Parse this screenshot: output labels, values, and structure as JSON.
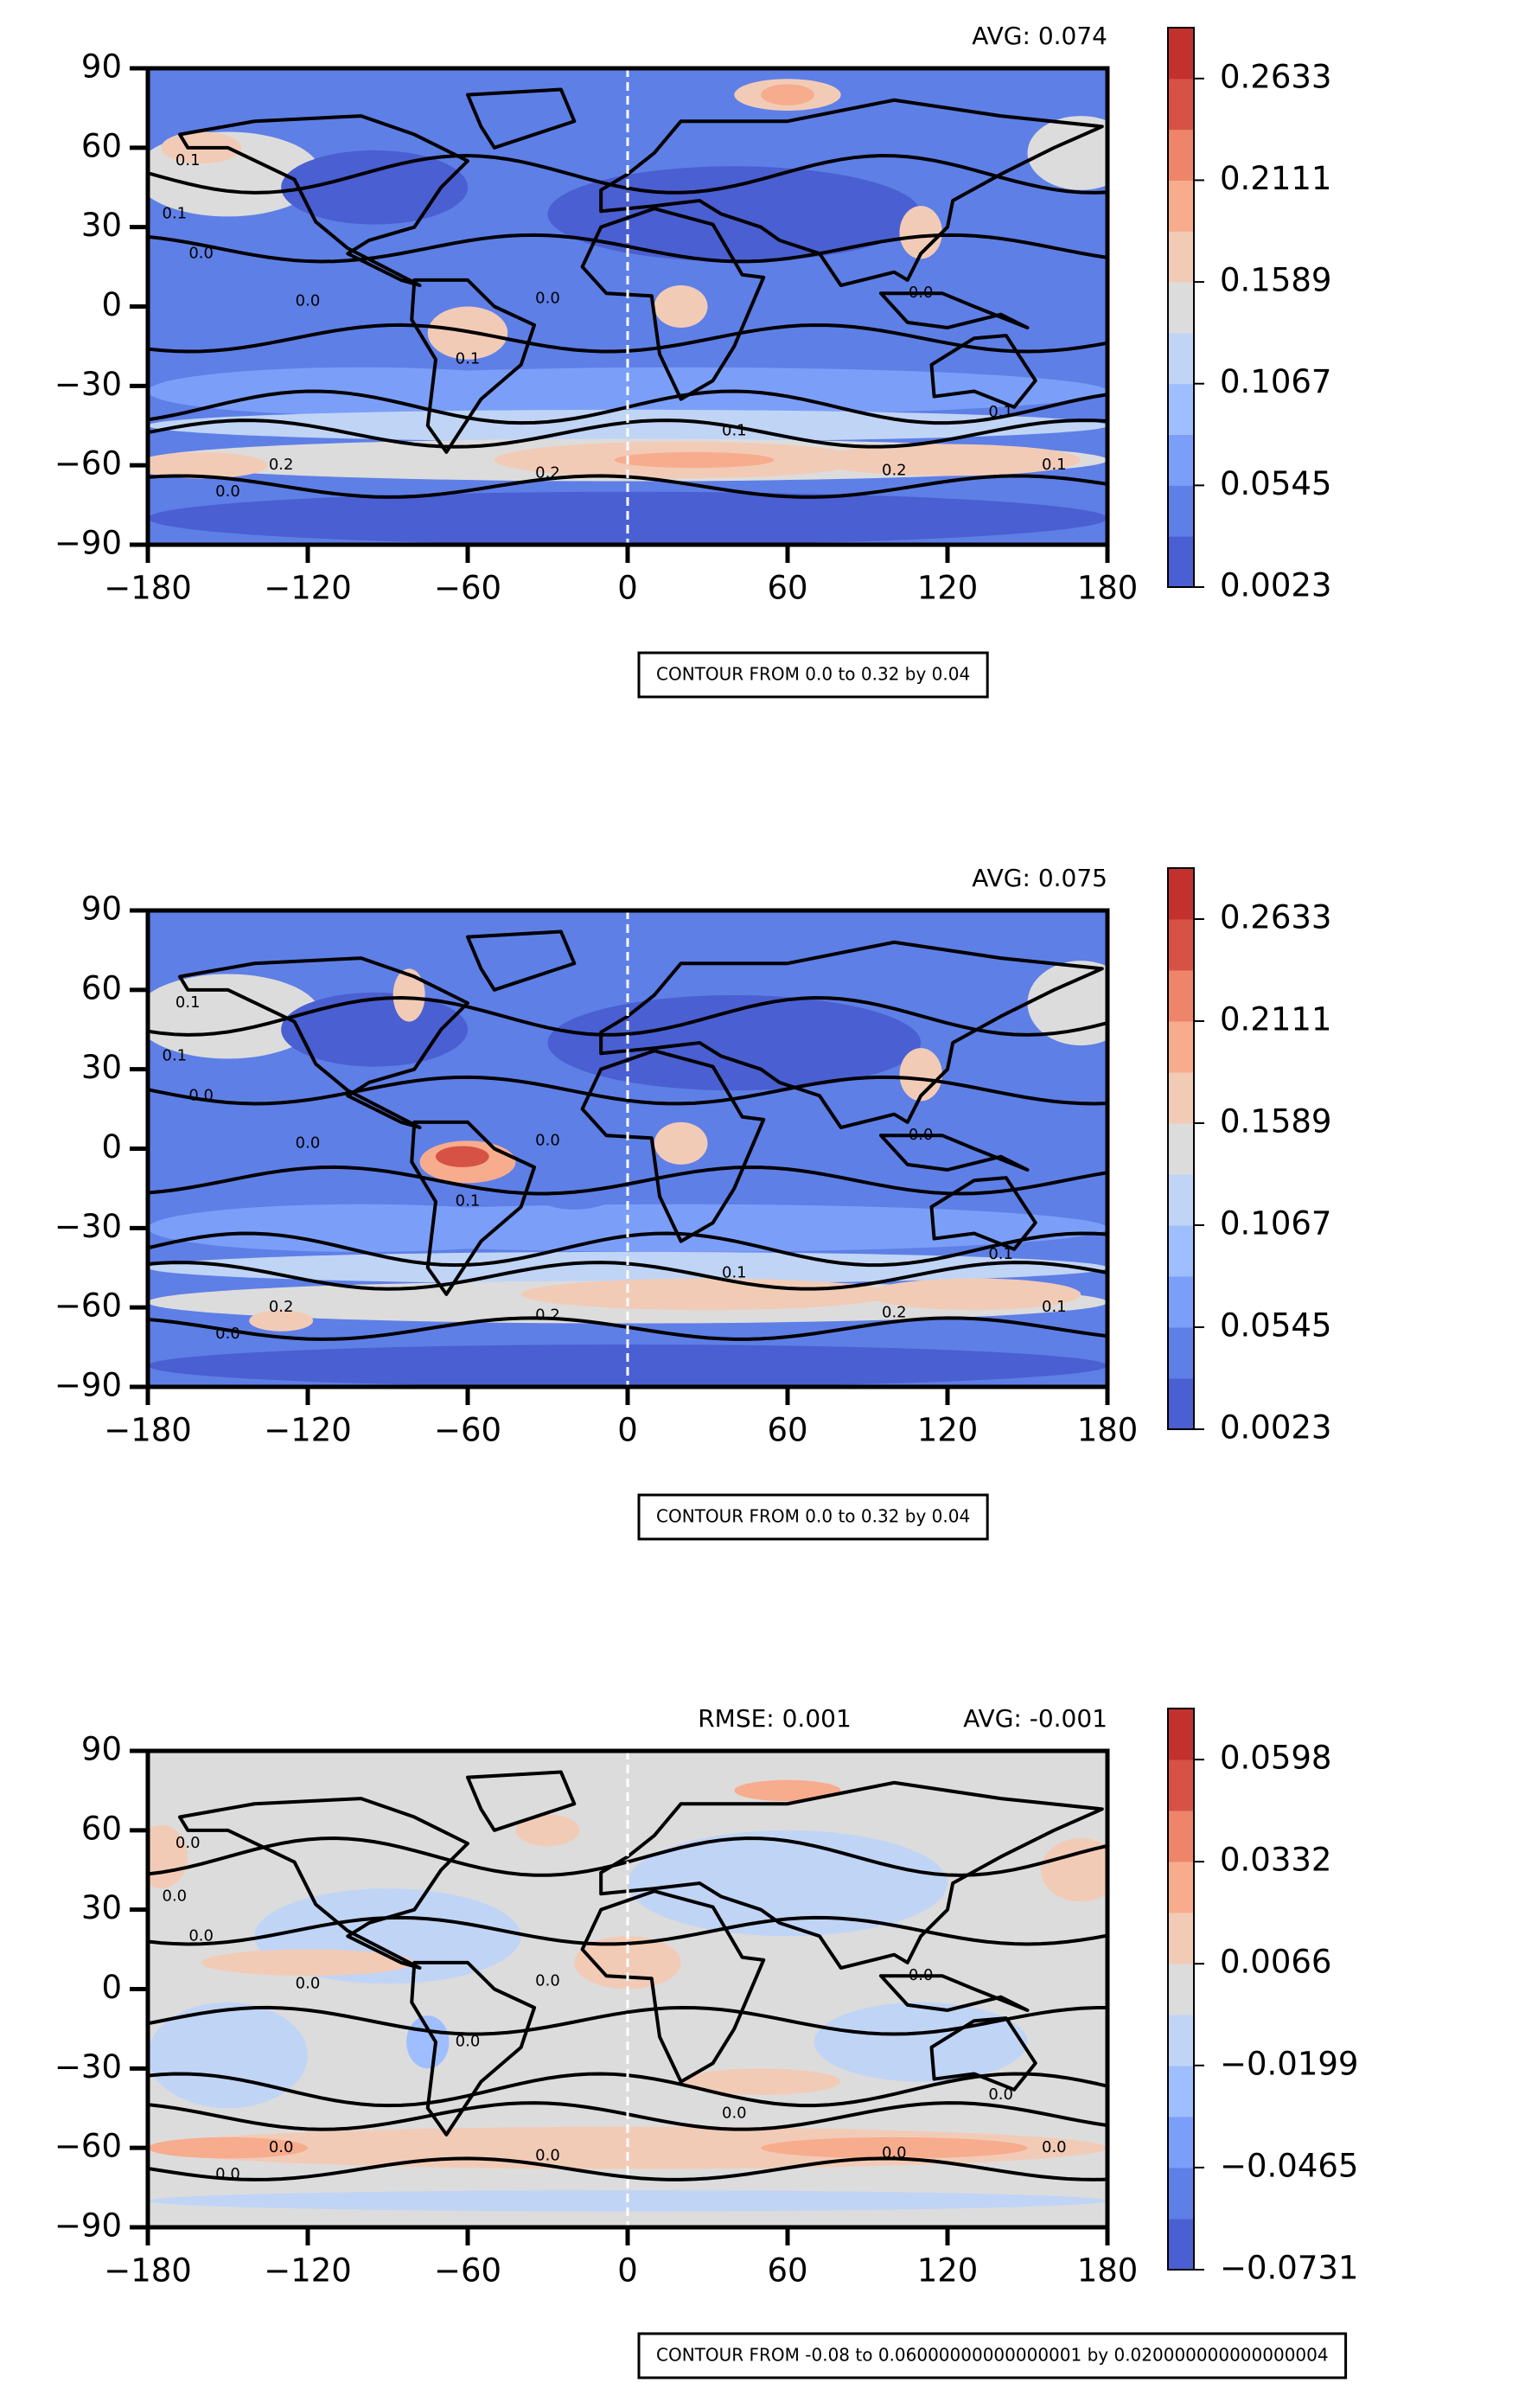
{
  "chart_data": [
    {
      "type": "contour",
      "avg_label": "AVG: 0.074",
      "contour_note": "CONTOUR FROM 0.0 to 0.32 by 0.04",
      "xlim": [
        -180,
        180
      ],
      "ylim": [
        -90,
        90
      ],
      "xticks": [
        {
          "value": -180,
          "label": "−180"
        },
        {
          "value": -120,
          "label": "−120"
        },
        {
          "value": -60,
          "label": "−60"
        },
        0,
        60,
        120,
        180
      ],
      "yticks": [
        {
          "value": -90,
          "label": "−90"
        },
        {
          "value": -60,
          "label": "−60"
        },
        {
          "value": -30,
          "label": "−30"
        },
        0,
        30,
        60,
        90
      ],
      "colorbar": {
        "clim": [
          0.0023,
          0.2894
        ],
        "ticks": [
          0.0023,
          0.0545,
          0.1067,
          0.1589,
          0.2111,
          0.2633
        ],
        "colors": [
          "#4a5fd1",
          "#5e7fe6",
          "#7b9ff9",
          "#9ebeff",
          "#c0d4f5",
          "#dddcdc",
          "#f2cbb7",
          "#f7ac8e",
          "#ee8468",
          "#d65244",
          "#c3312f"
        ]
      },
      "contour_labels": [
        "0.0",
        "0.1",
        "0.1",
        "0.1",
        "0.0",
        "0.0",
        "0.0",
        "0.1",
        "0.2",
        "0.2",
        "0.2",
        "0.1",
        "0.0",
        "0.1"
      ]
    },
    {
      "type": "contour",
      "avg_label": "AVG: 0.075",
      "contour_note": "CONTOUR FROM 0.0 to 0.32 by 0.04",
      "xlim": [
        -180,
        180
      ],
      "ylim": [
        -90,
        90
      ],
      "xticks": [
        {
          "value": -180,
          "label": "−180"
        },
        {
          "value": -120,
          "label": "−120"
        },
        {
          "value": -60,
          "label": "−60"
        },
        0,
        60,
        120,
        180
      ],
      "yticks": [
        {
          "value": -90,
          "label": "−90"
        },
        {
          "value": -60,
          "label": "−60"
        },
        {
          "value": -30,
          "label": "−30"
        },
        0,
        30,
        60,
        90
      ],
      "colorbar": {
        "clim": [
          0.0023,
          0.2894
        ],
        "ticks": [
          0.0023,
          0.0545,
          0.1067,
          0.1589,
          0.2111,
          0.2633
        ],
        "colors": [
          "#4a5fd1",
          "#5e7fe6",
          "#7b9ff9",
          "#9ebeff",
          "#c0d4f5",
          "#dddcdc",
          "#f2cbb7",
          "#f7ac8e",
          "#ee8468",
          "#d65244",
          "#c3312f"
        ]
      },
      "contour_labels": [
        "0.0",
        "0.1",
        "0.1",
        "0.1",
        "0.0",
        "0.0",
        "0.0",
        "0.1",
        "0.2",
        "0.2",
        "0.2",
        "0.1",
        "0.0",
        "0.1"
      ]
    },
    {
      "type": "contour",
      "rmse_label": "RMSE: 0.001",
      "avg_label": "AVG: -0.001",
      "contour_note": "CONTOUR FROM -0.08 to 0.06000000000000001 by 0.020000000000000004",
      "xlim": [
        -180,
        180
      ],
      "ylim": [
        -90,
        90
      ],
      "xticks": [
        {
          "value": -180,
          "label": "−180"
        },
        {
          "value": -120,
          "label": "−120"
        },
        {
          "value": -60,
          "label": "−60"
        },
        0,
        60,
        120,
        180
      ],
      "yticks": [
        {
          "value": -90,
          "label": "−90"
        },
        {
          "value": -60,
          "label": "−60"
        },
        {
          "value": -30,
          "label": "−30"
        },
        0,
        30,
        60,
        90
      ],
      "colorbar": {
        "clim": [
          -0.0731,
          0.0731
        ],
        "ticks": [
          {
            "value": -0.0731,
            "label": "−0.0731"
          },
          {
            "value": -0.0465,
            "label": "−0.0465"
          },
          {
            "value": -0.0199,
            "label": "−0.0199"
          },
          0.0066,
          0.0332,
          0.0598
        ],
        "colors": [
          "#4a5fd1",
          "#5e7fe6",
          "#7b9ff9",
          "#9ebeff",
          "#c0d4f5",
          "#dddcdc",
          "#f2cbb7",
          "#f7ac8e",
          "#ee8468",
          "#d65244",
          "#c3312f"
        ]
      },
      "contour_labels": [
        "0.0",
        "0.0",
        "0.0",
        "0.0",
        "0.0",
        "0.0",
        "0.0",
        "0.0",
        "0.0",
        "0.0",
        "0.0",
        "0.0",
        "0.0",
        "0.0"
      ]
    }
  ]
}
